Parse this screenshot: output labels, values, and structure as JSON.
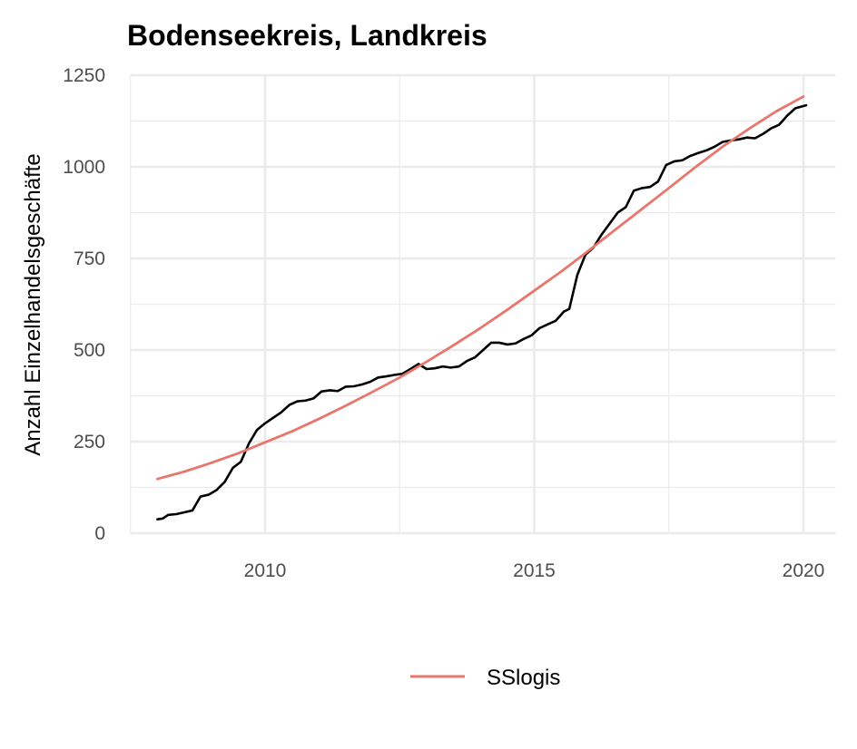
{
  "chart_data": {
    "type": "line",
    "title": "Bodenseekreis, Landkreis",
    "xlabel": "",
    "ylabel": "Anzahl Einzelhandelsgeschäfte",
    "xlim": [
      2007.5,
      2020.6
    ],
    "ylim": [
      0,
      1250
    ],
    "x_ticks": [
      2010,
      2015,
      2020
    ],
    "y_ticks": [
      0,
      250,
      500,
      750,
      1000,
      1250
    ],
    "grid": true,
    "legend_position": "bottom",
    "series": [
      {
        "color": "#000000",
        "points": [
          [
            2008.0,
            38
          ],
          [
            2008.1,
            40
          ],
          [
            2008.2,
            50
          ],
          [
            2008.35,
            52
          ],
          [
            2008.5,
            57
          ],
          [
            2008.65,
            62
          ],
          [
            2008.8,
            100
          ],
          [
            2008.95,
            105
          ],
          [
            2009.1,
            118
          ],
          [
            2009.25,
            140
          ],
          [
            2009.4,
            178
          ],
          [
            2009.55,
            195
          ],
          [
            2009.7,
            245
          ],
          [
            2009.85,
            282
          ],
          [
            2010.0,
            300
          ],
          [
            2010.15,
            315
          ],
          [
            2010.3,
            330
          ],
          [
            2010.45,
            350
          ],
          [
            2010.6,
            360
          ],
          [
            2010.75,
            362
          ],
          [
            2010.9,
            368
          ],
          [
            2011.05,
            387
          ],
          [
            2011.2,
            390
          ],
          [
            2011.35,
            388
          ],
          [
            2011.5,
            400
          ],
          [
            2011.65,
            401
          ],
          [
            2011.8,
            406
          ],
          [
            2011.95,
            413
          ],
          [
            2012.1,
            425
          ],
          [
            2012.25,
            428
          ],
          [
            2012.4,
            432
          ],
          [
            2012.55,
            435
          ],
          [
            2012.7,
            448
          ],
          [
            2012.85,
            462
          ],
          [
            2013.0,
            448
          ],
          [
            2013.15,
            450
          ],
          [
            2013.3,
            455
          ],
          [
            2013.45,
            452
          ],
          [
            2013.6,
            455
          ],
          [
            2013.75,
            470
          ],
          [
            2013.9,
            480
          ],
          [
            2014.05,
            500
          ],
          [
            2014.2,
            520
          ],
          [
            2014.35,
            520
          ],
          [
            2014.5,
            515
          ],
          [
            2014.65,
            518
          ],
          [
            2014.8,
            530
          ],
          [
            2014.95,
            540
          ],
          [
            2015.1,
            560
          ],
          [
            2015.25,
            570
          ],
          [
            2015.4,
            580
          ],
          [
            2015.55,
            605
          ],
          [
            2015.65,
            612
          ],
          [
            2015.8,
            705
          ],
          [
            2015.95,
            760
          ],
          [
            2016.1,
            780
          ],
          [
            2016.25,
            815
          ],
          [
            2016.4,
            845
          ],
          [
            2016.55,
            875
          ],
          [
            2016.7,
            890
          ],
          [
            2016.85,
            935
          ],
          [
            2017.0,
            942
          ],
          [
            2017.15,
            945
          ],
          [
            2017.3,
            960
          ],
          [
            2017.45,
            1005
          ],
          [
            2017.6,
            1015
          ],
          [
            2017.75,
            1018
          ],
          [
            2017.9,
            1030
          ],
          [
            2018.05,
            1038
          ],
          [
            2018.2,
            1045
          ],
          [
            2018.35,
            1055
          ],
          [
            2018.5,
            1068
          ],
          [
            2018.65,
            1072
          ],
          [
            2018.8,
            1075
          ],
          [
            2018.95,
            1080
          ],
          [
            2019.1,
            1078
          ],
          [
            2019.25,
            1090
          ],
          [
            2019.4,
            1105
          ],
          [
            2019.55,
            1115
          ],
          [
            2019.7,
            1140
          ],
          [
            2019.85,
            1160
          ],
          [
            2020.05,
            1168
          ]
        ]
      },
      {
        "name": "SSlogis",
        "color": "#e8766d",
        "points": [
          [
            2008.0,
            148
          ],
          [
            2008.5,
            168
          ],
          [
            2009.0,
            192
          ],
          [
            2009.5,
            218
          ],
          [
            2010.0,
            248
          ],
          [
            2010.5,
            278
          ],
          [
            2011.0,
            312
          ],
          [
            2011.5,
            348
          ],
          [
            2012.0,
            386
          ],
          [
            2012.5,
            425
          ],
          [
            2013.0,
            468
          ],
          [
            2013.5,
            513
          ],
          [
            2014.0,
            560
          ],
          [
            2014.5,
            610
          ],
          [
            2015.0,
            662
          ],
          [
            2015.5,
            714
          ],
          [
            2016.0,
            770
          ],
          [
            2016.5,
            828
          ],
          [
            2017.0,
            885
          ],
          [
            2017.5,
            942
          ],
          [
            2018.0,
            1000
          ],
          [
            2018.5,
            1055
          ],
          [
            2019.0,
            1105
          ],
          [
            2019.5,
            1152
          ],
          [
            2020.0,
            1192
          ]
        ]
      }
    ]
  }
}
